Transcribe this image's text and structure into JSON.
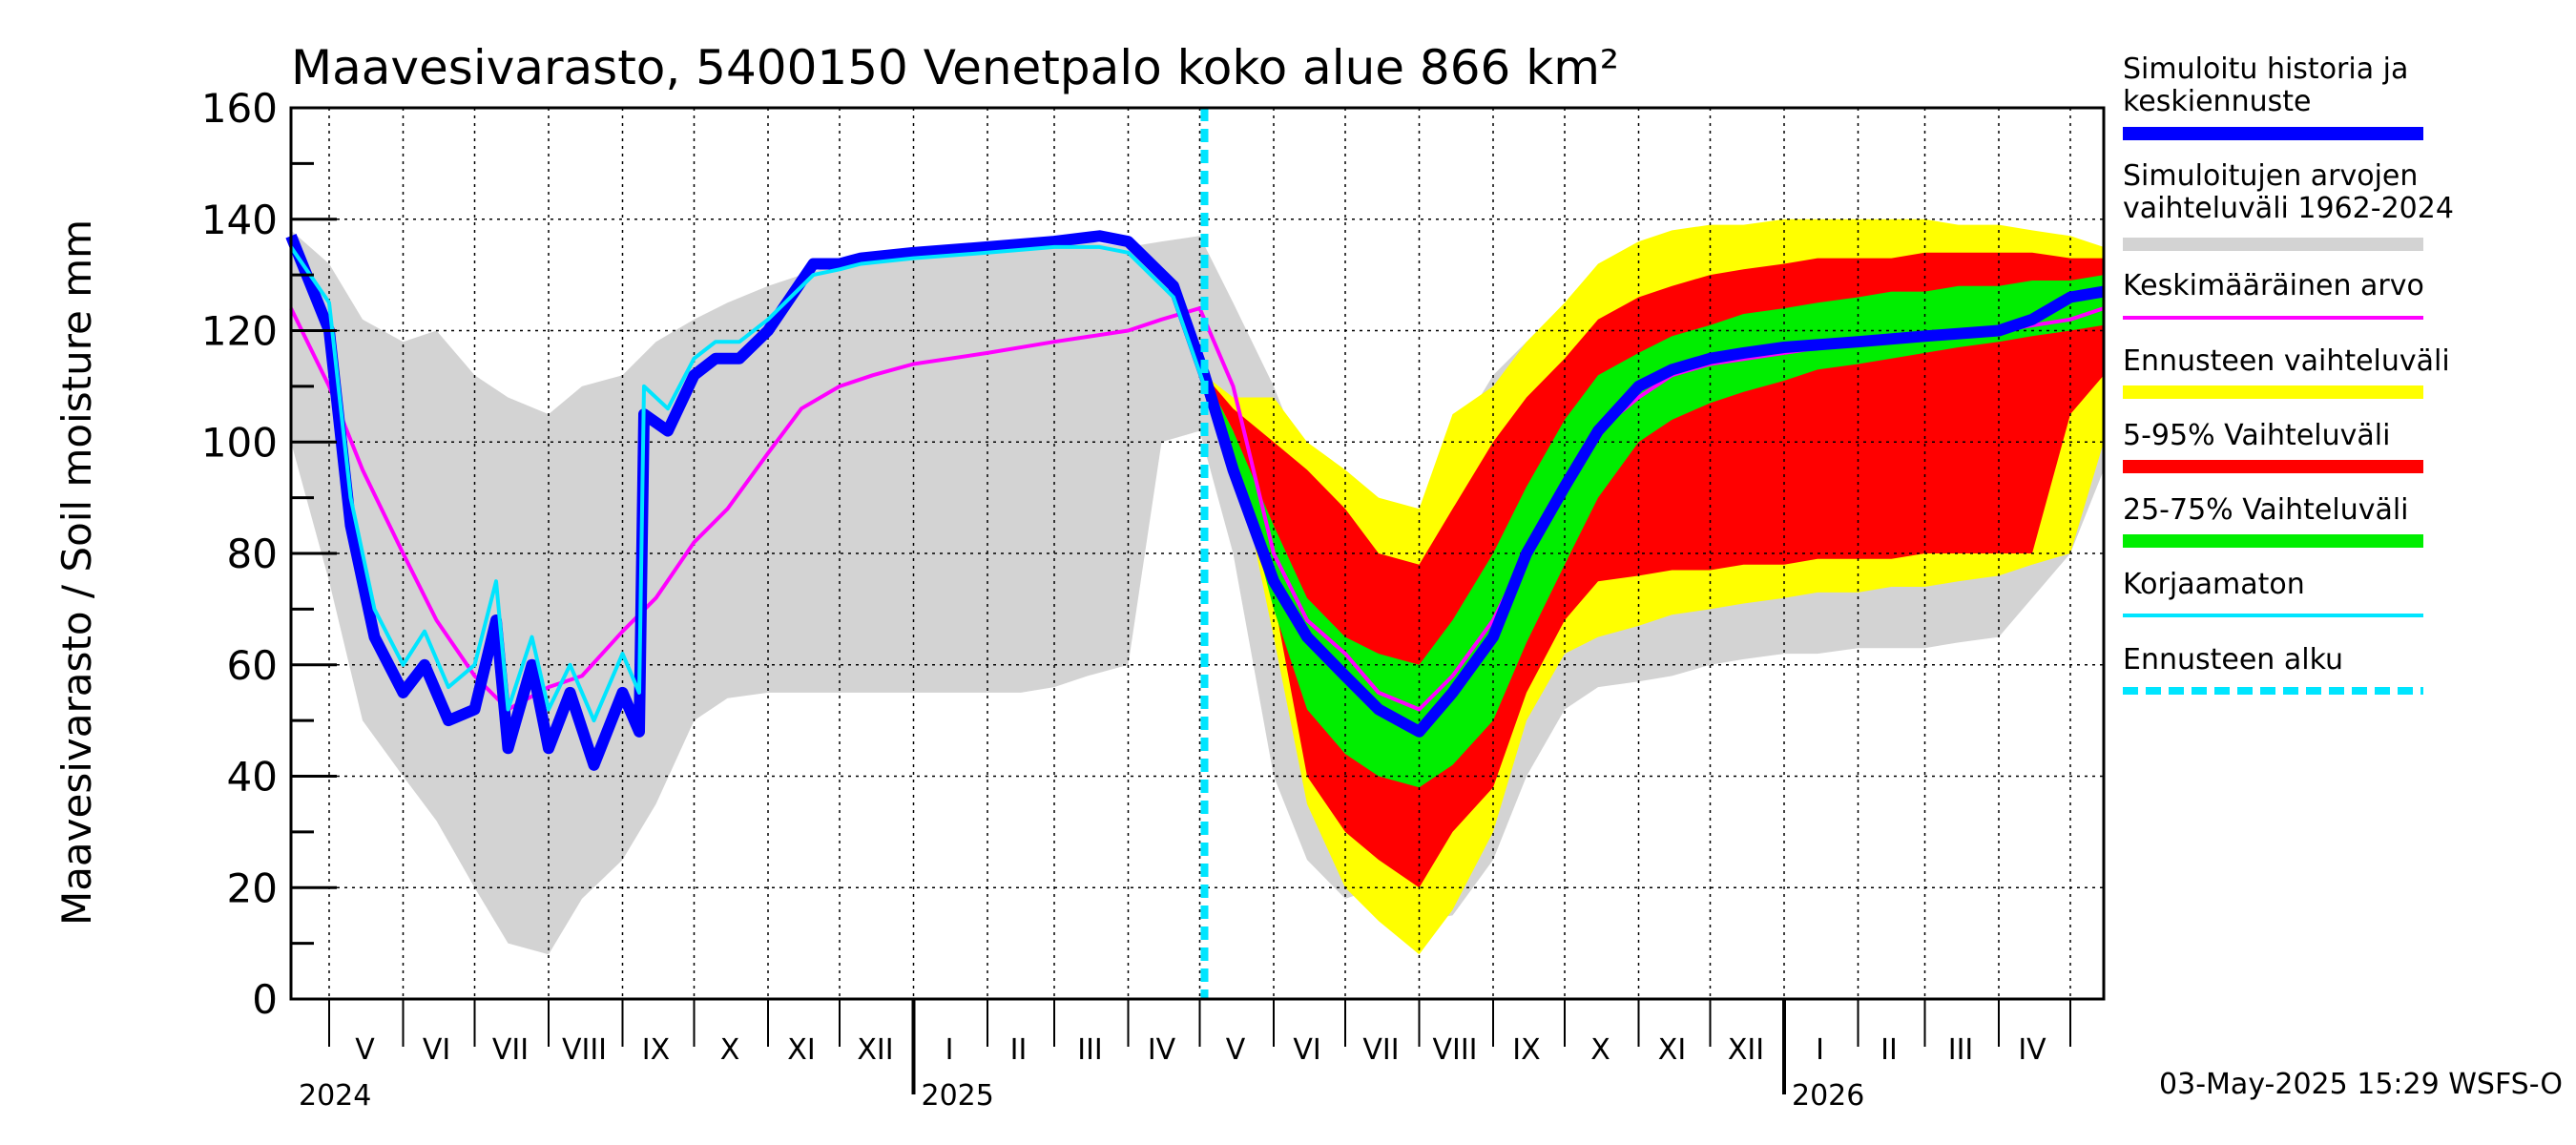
{
  "chart_data": {
    "type": "area",
    "title": "Maavesivarasto, 5400150 Venetpalo koko alue 866 km²",
    "ylabel": "Maavesivarasto / Soil moisture   mm",
    "ylim": [
      0,
      160
    ],
    "yticks": [
      0,
      20,
      40,
      60,
      80,
      100,
      120,
      140,
      160
    ],
    "xlim": [
      "2024-04-15",
      "2026-05-15"
    ],
    "forecast_start": "2025-05-03",
    "months": [
      {
        "label": "V",
        "date": "2024-05-16"
      },
      {
        "label": "VI",
        "date": "2024-06-15"
      },
      {
        "label": "VII",
        "date": "2024-07-16"
      },
      {
        "label": "VIII",
        "date": "2024-08-16"
      },
      {
        "label": "IX",
        "date": "2024-09-15"
      },
      {
        "label": "X",
        "date": "2024-10-16"
      },
      {
        "label": "XI",
        "date": "2024-11-15"
      },
      {
        "label": "XII",
        "date": "2024-12-16"
      },
      {
        "label": "I",
        "date": "2025-01-16"
      },
      {
        "label": "II",
        "date": "2025-02-14"
      },
      {
        "label": "III",
        "date": "2025-03-16"
      },
      {
        "label": "IV",
        "date": "2025-04-15"
      },
      {
        "label": "V",
        "date": "2025-05-16"
      },
      {
        "label": "VI",
        "date": "2025-06-15"
      },
      {
        "label": "VII",
        "date": "2025-07-16"
      },
      {
        "label": "VIII",
        "date": "2025-08-16"
      },
      {
        "label": "IX",
        "date": "2025-09-15"
      },
      {
        "label": "X",
        "date": "2025-10-16"
      },
      {
        "label": "XI",
        "date": "2025-11-15"
      },
      {
        "label": "XII",
        "date": "2025-12-16"
      },
      {
        "label": "I",
        "date": "2026-01-16"
      },
      {
        "label": "II",
        "date": "2026-02-14"
      },
      {
        "label": "III",
        "date": "2026-03-16"
      },
      {
        "label": "IV",
        "date": "2026-04-15"
      }
    ],
    "years": [
      {
        "label": "2024",
        "date": "2024-04-15"
      },
      {
        "label": "2025",
        "date": "2025-01-01"
      },
      {
        "label": "2026",
        "date": "2026-01-01"
      }
    ],
    "bands": [
      {
        "name": "Simuloitujen arvojen vaihteluväli 1962-2024",
        "color": "#d3d3d3",
        "x": [
          "2024-04-15",
          "2024-05-01",
          "2024-05-15",
          "2024-06-01",
          "2024-06-15",
          "2024-07-01",
          "2024-07-15",
          "2024-08-01",
          "2024-08-15",
          "2024-09-01",
          "2024-09-15",
          "2024-10-01",
          "2024-10-15",
          "2024-11-01",
          "2024-11-15",
          "2024-12-01",
          "2024-12-15",
          "2025-01-01",
          "2025-01-15",
          "2025-02-01",
          "2025-02-15",
          "2025-03-01",
          "2025-03-15",
          "2025-04-01",
          "2025-04-15",
          "2025-05-01",
          "2025-05-15",
          "2025-06-01",
          "2025-06-15",
          "2025-07-01",
          "2025-07-15",
          "2025-08-01",
          "2025-08-15",
          "2025-09-01",
          "2025-09-15",
          "2025-10-01",
          "2025-10-15",
          "2025-11-01",
          "2025-11-15",
          "2025-12-01",
          "2025-12-15",
          "2026-01-01",
          "2026-01-15",
          "2026-02-01",
          "2026-02-15",
          "2026-03-01",
          "2026-03-15",
          "2026-04-01",
          "2026-04-15",
          "2026-05-01",
          "2026-05-15"
        ],
        "upper": [
          138,
          132,
          122,
          118,
          120,
          112,
          108,
          105,
          110,
          112,
          118,
          122,
          125,
          128,
          130,
          132,
          133,
          134,
          134,
          135,
          135,
          136,
          136,
          135,
          136,
          137,
          125,
          110,
          95,
          85,
          82,
          85,
          100,
          112,
          118,
          122,
          125,
          128,
          130,
          132,
          133,
          134,
          134,
          135,
          135,
          135,
          136,
          136,
          135,
          135,
          135
        ],
        "lower": [
          100,
          75,
          50,
          40,
          32,
          20,
          10,
          8,
          18,
          25,
          35,
          50,
          54,
          55,
          55,
          55,
          55,
          55,
          55,
          55,
          55,
          56,
          58,
          60,
          100,
          102,
          80,
          40,
          25,
          18,
          20,
          14,
          15,
          25,
          40,
          52,
          56,
          57,
          58,
          60,
          61,
          62,
          62,
          63,
          63,
          63,
          64,
          65,
          72,
          80,
          95
        ]
      },
      {
        "name": "Ennusteen vaihteluväli",
        "color": "#ffff00",
        "x": [
          "2025-05-03",
          "2025-05-15",
          "2025-06-01",
          "2025-06-15",
          "2025-07-01",
          "2025-07-15",
          "2025-08-01",
          "2025-08-15",
          "2025-09-01",
          "2025-09-15",
          "2025-10-01",
          "2025-10-15",
          "2025-11-01",
          "2025-11-15",
          "2025-12-01",
          "2025-12-15",
          "2026-01-01",
          "2026-01-15",
          "2026-02-01",
          "2026-02-15",
          "2026-03-01",
          "2026-03-15",
          "2026-04-01",
          "2026-04-15",
          "2026-05-01",
          "2026-05-15"
        ],
        "upper": [
          112,
          108,
          108,
          100,
          95,
          90,
          88,
          105,
          110,
          118,
          125,
          132,
          136,
          138,
          139,
          139,
          140,
          140,
          140,
          140,
          140,
          139,
          139,
          138,
          137,
          135
        ],
        "lower": [
          112,
          100,
          65,
          35,
          20,
          14,
          8,
          16,
          30,
          50,
          62,
          65,
          67,
          69,
          70,
          71,
          72,
          73,
          73,
          74,
          74,
          75,
          76,
          78,
          80,
          100
        ]
      },
      {
        "name": "5-95% Vaihteluväli",
        "color": "#ff0000",
        "x": [
          "2025-05-03",
          "2025-05-15",
          "2025-06-01",
          "2025-06-15",
          "2025-07-01",
          "2025-07-15",
          "2025-08-01",
          "2025-08-15",
          "2025-09-01",
          "2025-09-15",
          "2025-10-01",
          "2025-10-15",
          "2025-11-01",
          "2025-11-15",
          "2025-12-01",
          "2025-12-15",
          "2026-01-01",
          "2026-01-15",
          "2026-02-01",
          "2026-02-15",
          "2026-03-01",
          "2026-03-15",
          "2026-04-01",
          "2026-04-15",
          "2026-05-01",
          "2026-05-15"
        ],
        "upper": [
          112,
          106,
          100,
          95,
          88,
          80,
          78,
          88,
          100,
          108,
          115,
          122,
          126,
          128,
          130,
          131,
          132,
          133,
          133,
          133,
          134,
          134,
          134,
          134,
          133,
          133
        ],
        "lower": [
          112,
          102,
          72,
          40,
          30,
          25,
          20,
          30,
          38,
          55,
          68,
          75,
          76,
          77,
          77,
          78,
          78,
          79,
          79,
          79,
          80,
          80,
          80,
          80,
          105,
          112
        ]
      },
      {
        "name": "25-75% Vaihteluväli",
        "color": "#00ee00",
        "x": [
          "2025-05-03",
          "2025-05-15",
          "2025-06-01",
          "2025-06-15",
          "2025-07-01",
          "2025-07-15",
          "2025-08-01",
          "2025-08-15",
          "2025-09-01",
          "2025-09-15",
          "2025-10-01",
          "2025-10-15",
          "2025-11-01",
          "2025-11-15",
          "2025-12-01",
          "2025-12-15",
          "2026-01-01",
          "2026-01-15",
          "2026-02-01",
          "2026-02-15",
          "2026-03-01",
          "2026-03-15",
          "2026-04-01",
          "2026-04-15",
          "2026-05-01",
          "2026-05-15"
        ],
        "upper": [
          112,
          102,
          85,
          72,
          65,
          62,
          60,
          68,
          80,
          92,
          104,
          112,
          116,
          119,
          121,
          123,
          124,
          125,
          126,
          127,
          127,
          128,
          128,
          129,
          129,
          130
        ],
        "lower": [
          112,
          98,
          70,
          52,
          44,
          40,
          38,
          42,
          50,
          64,
          78,
          90,
          100,
          104,
          107,
          109,
          111,
          113,
          114,
          115,
          116,
          117,
          118,
          119,
          120,
          121
        ]
      }
    ],
    "series": [
      {
        "name": "Simuloitu historia ja keskiennuste",
        "color": "#0000ff",
        "x": [
          "2024-04-15",
          "2024-05-01",
          "2024-05-10",
          "2024-05-20",
          "2024-06-01",
          "2024-06-10",
          "2024-06-20",
          "2024-07-01",
          "2024-07-10",
          "2024-07-15",
          "2024-07-25",
          "2024-08-01",
          "2024-08-10",
          "2024-08-20",
          "2024-09-01",
          "2024-09-08",
          "2024-09-10",
          "2024-09-20",
          "2024-10-01",
          "2024-10-10",
          "2024-10-20",
          "2024-11-01",
          "2024-11-20",
          "2024-12-01",
          "2024-12-10",
          "2025-01-01",
          "2025-02-01",
          "2025-03-01",
          "2025-03-20",
          "2025-04-01",
          "2025-04-20",
          "2025-05-03",
          "2025-05-15",
          "2025-06-01",
          "2025-06-15",
          "2025-07-01",
          "2025-07-15",
          "2025-08-01",
          "2025-08-15",
          "2025-09-01",
          "2025-09-15",
          "2025-10-01",
          "2025-10-15",
          "2025-11-01",
          "2025-11-15",
          "2025-12-01",
          "2025-12-15",
          "2026-01-01",
          "2026-02-01",
          "2026-03-01",
          "2026-04-01",
          "2026-04-15",
          "2026-05-01",
          "2026-05-15"
        ],
        "y": [
          137,
          120,
          85,
          65,
          55,
          60,
          50,
          52,
          68,
          45,
          60,
          45,
          55,
          42,
          55,
          48,
          105,
          102,
          112,
          115,
          115,
          120,
          132,
          132,
          133,
          134,
          135,
          136,
          137,
          136,
          128,
          112,
          95,
          75,
          65,
          58,
          52,
          48,
          55,
          65,
          80,
          92,
          102,
          110,
          113,
          115,
          116,
          117,
          118,
          119,
          120,
          122,
          126,
          127
        ]
      },
      {
        "name": "Korjaamaton",
        "color": "#00e5ff",
        "x": [
          "2024-04-15",
          "2024-05-01",
          "2024-05-10",
          "2024-05-20",
          "2024-06-01",
          "2024-06-10",
          "2024-06-20",
          "2024-07-01",
          "2024-07-10",
          "2024-07-15",
          "2024-07-25",
          "2024-08-01",
          "2024-08-10",
          "2024-08-20",
          "2024-09-01",
          "2024-09-08",
          "2024-09-10",
          "2024-09-20",
          "2024-10-01",
          "2024-10-10",
          "2024-10-20",
          "2024-11-01",
          "2024-11-20",
          "2024-12-01",
          "2024-12-10",
          "2025-01-01",
          "2025-02-01",
          "2025-03-01",
          "2025-03-20",
          "2025-04-01",
          "2025-04-20",
          "2025-05-03"
        ],
        "y": [
          135,
          125,
          90,
          70,
          60,
          66,
          56,
          60,
          75,
          52,
          65,
          52,
          60,
          50,
          62,
          55,
          110,
          106,
          115,
          118,
          118,
          122,
          130,
          131,
          132,
          133,
          134,
          135,
          135,
          134,
          126,
          110
        ]
      },
      {
        "name": "Keskimääräinen arvo",
        "color": "#ff00ff",
        "x": [
          "2024-04-15",
          "2024-05-01",
          "2024-05-15",
          "2024-06-01",
          "2024-06-15",
          "2024-07-01",
          "2024-07-15",
          "2024-08-01",
          "2024-08-15",
          "2024-09-01",
          "2024-09-15",
          "2024-10-01",
          "2024-10-15",
          "2024-11-01",
          "2024-11-15",
          "2024-12-01",
          "2024-12-15",
          "2025-01-01",
          "2025-02-01",
          "2025-03-01",
          "2025-04-01",
          "2025-04-15",
          "2025-05-01",
          "2025-05-15",
          "2025-06-01",
          "2025-06-15",
          "2025-07-01",
          "2025-07-15",
          "2025-08-01",
          "2025-08-15",
          "2025-09-01",
          "2025-09-15",
          "2025-10-01",
          "2025-10-15",
          "2025-11-01",
          "2025-11-15",
          "2025-12-01",
          "2026-01-01",
          "2026-02-01",
          "2026-03-01",
          "2026-04-01",
          "2026-05-01",
          "2026-05-15"
        ],
        "y": [
          124,
          110,
          95,
          80,
          68,
          58,
          52,
          56,
          58,
          66,
          72,
          82,
          88,
          98,
          106,
          110,
          112,
          114,
          116,
          118,
          120,
          122,
          124,
          110,
          80,
          68,
          62,
          55,
          52,
          58,
          68,
          80,
          92,
          102,
          108,
          112,
          114,
          116,
          118,
          119,
          120,
          122,
          124
        ]
      }
    ],
    "legend": [
      {
        "label": "Simuloitu historia ja keskiennuste",
        "color": "#0000ff",
        "style": "line"
      },
      {
        "label": "Simuloitujen arvojen vaihteluväli 1962-2024",
        "color": "#d3d3d3",
        "style": "bar"
      },
      {
        "label": "Keskimääräinen arvo",
        "color": "#ff00ff",
        "style": "line"
      },
      {
        "label": "Ennusteen vaihteluväli",
        "color": "#ffff00",
        "style": "bar"
      },
      {
        "label": "5-95% Vaihteluväli",
        "color": "#ff0000",
        "style": "bar"
      },
      {
        "label": "25-75% Vaihteluväli",
        "color": "#00ee00",
        "style": "bar"
      },
      {
        "label": "Korjaamaton",
        "color": "#00e5ff",
        "style": "line"
      },
      {
        "label": "Ennusteen alku",
        "color": "#00e5ff",
        "style": "dashed"
      }
    ],
    "legend_position": "right",
    "grid": true
  },
  "footer": "03-May-2025 15:29 WSFS-O"
}
